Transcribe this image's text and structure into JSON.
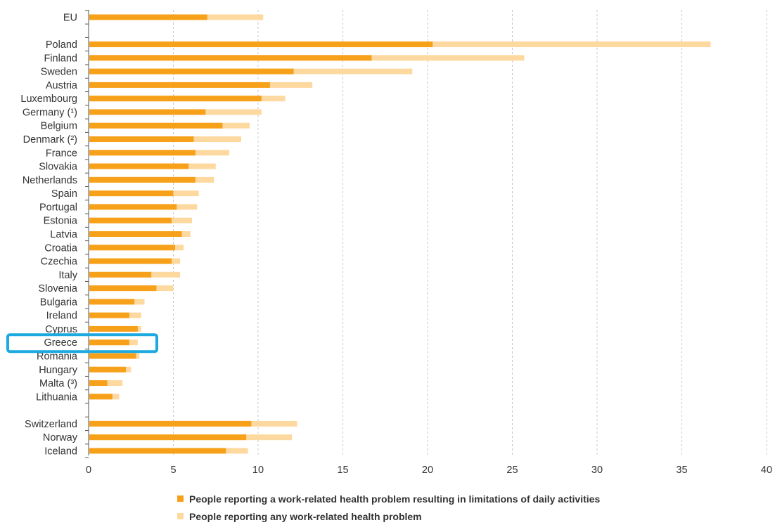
{
  "chart_data": {
    "type": "bar",
    "orientation": "horizontal",
    "stacking": "overlay",
    "categories": [
      "EU",
      "Poland",
      "Finland",
      "Sweden",
      "Austria",
      "Luxembourg",
      "Germany (¹)",
      "Belgium",
      "Denmark (²)",
      "France",
      "Slovakia",
      "Netherlands",
      "Spain",
      "Portugal",
      "Estonia",
      "Latvia",
      "Croatia",
      "Czechia",
      "Italy",
      "Slovenia",
      "Bulgaria",
      "Ireland",
      "Cyprus",
      "Greece",
      "Romania",
      "Hungary",
      "Malta (³)",
      "Lithuania",
      "Switzerland",
      "Norway",
      "Iceland"
    ],
    "series": [
      {
        "name": "People reporting any work-related health problem",
        "color": "#FDD9A0",
        "values": [
          10.3,
          36.7,
          25.7,
          19.1,
          13.2,
          11.6,
          10.2,
          9.5,
          9.0,
          8.3,
          7.5,
          7.4,
          6.5,
          6.4,
          6.1,
          6.0,
          5.6,
          5.4,
          5.4,
          5.0,
          3.3,
          3.1,
          3.1,
          2.9,
          3.0,
          2.5,
          2.0,
          1.8,
          12.3,
          12.0,
          9.4
        ]
      },
      {
        "name": "People reporting a work-related health problem resulting in limitations of daily activities",
        "color": "#F7A11A",
        "values": [
          7.0,
          20.3,
          16.7,
          12.1,
          10.7,
          10.2,
          6.9,
          7.9,
          6.2,
          6.3,
          5.9,
          6.3,
          5.0,
          5.2,
          4.9,
          5.5,
          5.1,
          4.9,
          3.7,
          4.0,
          2.7,
          2.4,
          2.9,
          2.4,
          2.8,
          2.2,
          1.1,
          1.4,
          9.6,
          9.3,
          8.1
        ]
      }
    ],
    "xlim": [
      0,
      40
    ],
    "xticks": [
      0,
      5,
      10,
      15,
      20,
      25,
      30,
      35,
      40
    ],
    "grid": "vertical-dashed",
    "legend_position": "bottom",
    "highlighted_category": "Greece",
    "highlight_color": "#1BA9E0"
  }
}
